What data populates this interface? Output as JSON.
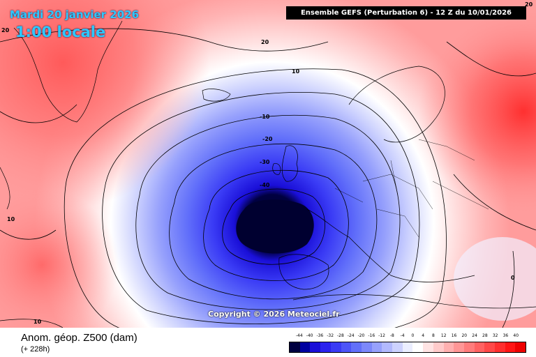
{
  "header": {
    "date": "Mardi 20 janvier 2026",
    "time": "1:00 locale",
    "run_info": "Ensemble GEFS  (Perturbation 6)  -  12 Z du 10/01/2026"
  },
  "credit": "Copyright © 2026 Meteociel.fr",
  "footer": {
    "field": "Anom. géop. Z500 (dam)",
    "lead": "(+ 228h)"
  },
  "legend": {
    "ticks": [
      "-44",
      "-40",
      "-36",
      "-32",
      "-28",
      "-24",
      "-20",
      "-16",
      "-12",
      "-8",
      "-4",
      "0",
      "4",
      "8",
      "12",
      "16",
      "20",
      "24",
      "28",
      "32",
      "36",
      "40"
    ],
    "colors": [
      "#000040",
      "#0000a0",
      "#1a0fd8",
      "#2b22ee",
      "#3a3bf5",
      "#4d55f8",
      "#6270fa",
      "#7c88fb",
      "#97a1fc",
      "#b2b9fd",
      "#cdd2fe",
      "#ebeeff",
      "#ffffff",
      "#ffe3e3",
      "#ffcaca",
      "#ffb0b0",
      "#ff9696",
      "#ff7c7c",
      "#ff6262",
      "#ff4848",
      "#ff2e2e",
      "#ff1414",
      "#ee0000"
    ]
  },
  "contour_labels": {
    "c20a": "20",
    "c20b": "20",
    "c20c": "20",
    "c10a": "10",
    "c10b": "10",
    "c10c": "10",
    "cm10": "-10",
    "cm20": "-20",
    "cm30": "-30",
    "cm40": "-40",
    "c0": "0"
  }
}
